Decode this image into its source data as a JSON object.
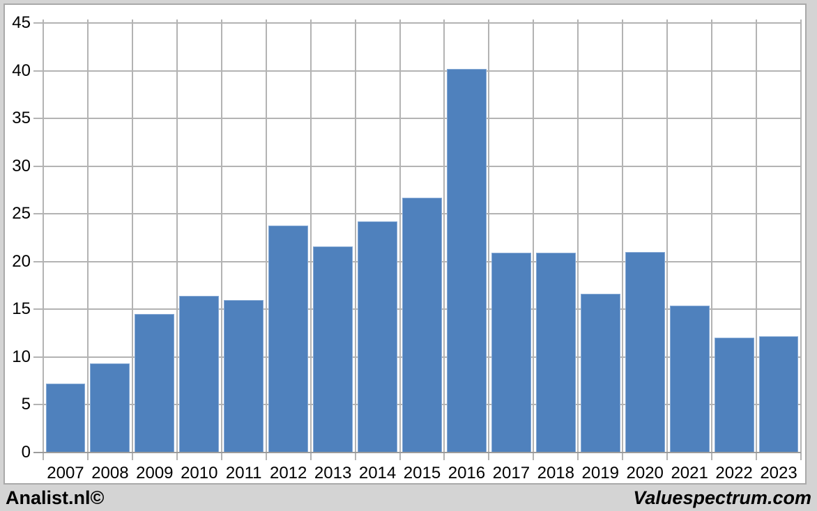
{
  "chart_data": {
    "type": "bar",
    "title": "",
    "xlabel": "",
    "ylabel": "",
    "categories": [
      "2007",
      "2008",
      "2009",
      "2010",
      "2011",
      "2012",
      "2013",
      "2014",
      "2015",
      "2016",
      "2017",
      "2018",
      "2019",
      "2020",
      "2021",
      "2022",
      "2023"
    ],
    "values": [
      7.2,
      9.3,
      14.5,
      16.4,
      16.0,
      23.8,
      21.6,
      24.2,
      26.7,
      40.2,
      20.9,
      20.9,
      16.6,
      21.0,
      15.4,
      12.0,
      12.2
    ],
    "ylim": [
      0,
      45
    ],
    "ytick_step": 5,
    "yticks": [
      0,
      5,
      10,
      15,
      20,
      25,
      30,
      35,
      40,
      45
    ],
    "grid": true,
    "legend": false,
    "colors": {
      "bar_fill": "#4f81bd",
      "bar_border": "#87aad5",
      "gridline": "#b3b3b3",
      "axis": "#9b9b9b",
      "plot_background": "#ffffff",
      "frame_background": "#d4d4d4",
      "text": "#000000"
    }
  },
  "footer": {
    "left": "Analist.nl©",
    "right": "Valuespectrum.com"
  }
}
